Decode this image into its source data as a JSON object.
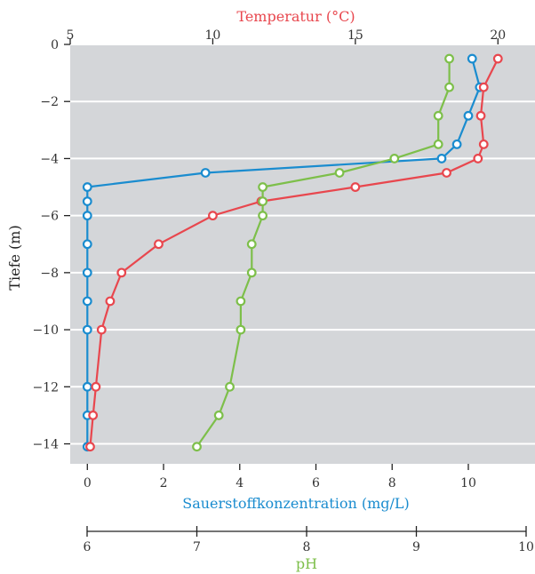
{
  "chart_data": {
    "type": "line",
    "background": "#d4d6d9",
    "grid": "horizontal",
    "axes": {
      "y": {
        "label": "Tiefe (m)",
        "range": [
          -14.7,
          0
        ],
        "ticks": [
          0,
          -2,
          -4,
          -6,
          -8,
          -10,
          -12,
          -14
        ],
        "tick_labels": [
          "0",
          "−2",
          "−4",
          "−6",
          "−8",
          "−10",
          "−12",
          "−14"
        ]
      },
      "x_top": {
        "label": "Temperatur (°C)",
        "range": [
          5,
          21.3
        ],
        "ticks": [
          5,
          10,
          15,
          20
        ],
        "tick_labels": [
          "5",
          "10",
          "15",
          "20"
        ],
        "color": "#e8474e"
      },
      "x_bottom": {
        "label": "Sauerstoffkonzentration (mg/L)",
        "range": [
          -0.45,
          11.75
        ],
        "ticks": [
          0,
          2,
          4,
          6,
          8,
          10
        ],
        "tick_labels": [
          "0",
          "2",
          "4",
          "6",
          "8",
          "10"
        ],
        "color": "#1a8ccf"
      },
      "x_ph": {
        "label": "pH",
        "range": [
          6,
          10
        ],
        "ticks": [
          6,
          7,
          8,
          9,
          10
        ],
        "tick_labels": [
          "6",
          "7",
          "8",
          "9",
          "10"
        ],
        "color": "#7dbf4a"
      }
    },
    "series": [
      {
        "key": "oxygen",
        "axis": "x_bottom",
        "color": "#1a8ccf",
        "points": [
          [
            10.1,
            -0.5
          ],
          [
            10.3,
            -1.5
          ],
          [
            10.0,
            -2.5
          ],
          [
            9.7,
            -3.5
          ],
          [
            9.3,
            -4.0
          ],
          [
            3.1,
            -4.5
          ],
          [
            0.0,
            -5.0
          ],
          [
            0.0,
            -5.5
          ],
          [
            0.0,
            -6.0
          ],
          [
            0.0,
            -7.0
          ],
          [
            0.0,
            -8.0
          ],
          [
            0.0,
            -9.0
          ],
          [
            0.0,
            -10.0
          ],
          [
            0.0,
            -12.0
          ],
          [
            0.0,
            -13.0
          ],
          [
            0.0,
            -14.1
          ]
        ]
      },
      {
        "key": "temperature",
        "axis": "x_top",
        "color": "#e8474e",
        "points": [
          [
            20.0,
            -0.5
          ],
          [
            19.5,
            -1.5
          ],
          [
            19.4,
            -2.5
          ],
          [
            19.5,
            -3.5
          ],
          [
            19.3,
            -4.0
          ],
          [
            18.2,
            -4.5
          ],
          [
            15.0,
            -5.0
          ],
          [
            11.7,
            -5.5
          ],
          [
            10.0,
            -6.0
          ],
          [
            8.1,
            -7.0
          ],
          [
            6.8,
            -8.0
          ],
          [
            6.4,
            -9.0
          ],
          [
            6.1,
            -10.0
          ],
          [
            5.9,
            -12.0
          ],
          [
            5.8,
            -13.0
          ],
          [
            5.7,
            -14.1
          ]
        ]
      },
      {
        "key": "ph",
        "axis": "x_ph",
        "color": "#7dbf4a",
        "points": [
          [
            9.3,
            -0.5
          ],
          [
            9.3,
            -1.5
          ],
          [
            9.2,
            -2.5
          ],
          [
            9.2,
            -3.5
          ],
          [
            8.8,
            -4.0
          ],
          [
            8.3,
            -4.5
          ],
          [
            7.6,
            -5.0
          ],
          [
            7.6,
            -5.5
          ],
          [
            7.6,
            -6.0
          ],
          [
            7.5,
            -7.0
          ],
          [
            7.5,
            -8.0
          ],
          [
            7.4,
            -9.0
          ],
          [
            7.4,
            -10.0
          ],
          [
            7.3,
            -12.0
          ],
          [
            7.2,
            -13.0
          ],
          [
            7.0,
            -14.1
          ]
        ]
      }
    ]
  }
}
